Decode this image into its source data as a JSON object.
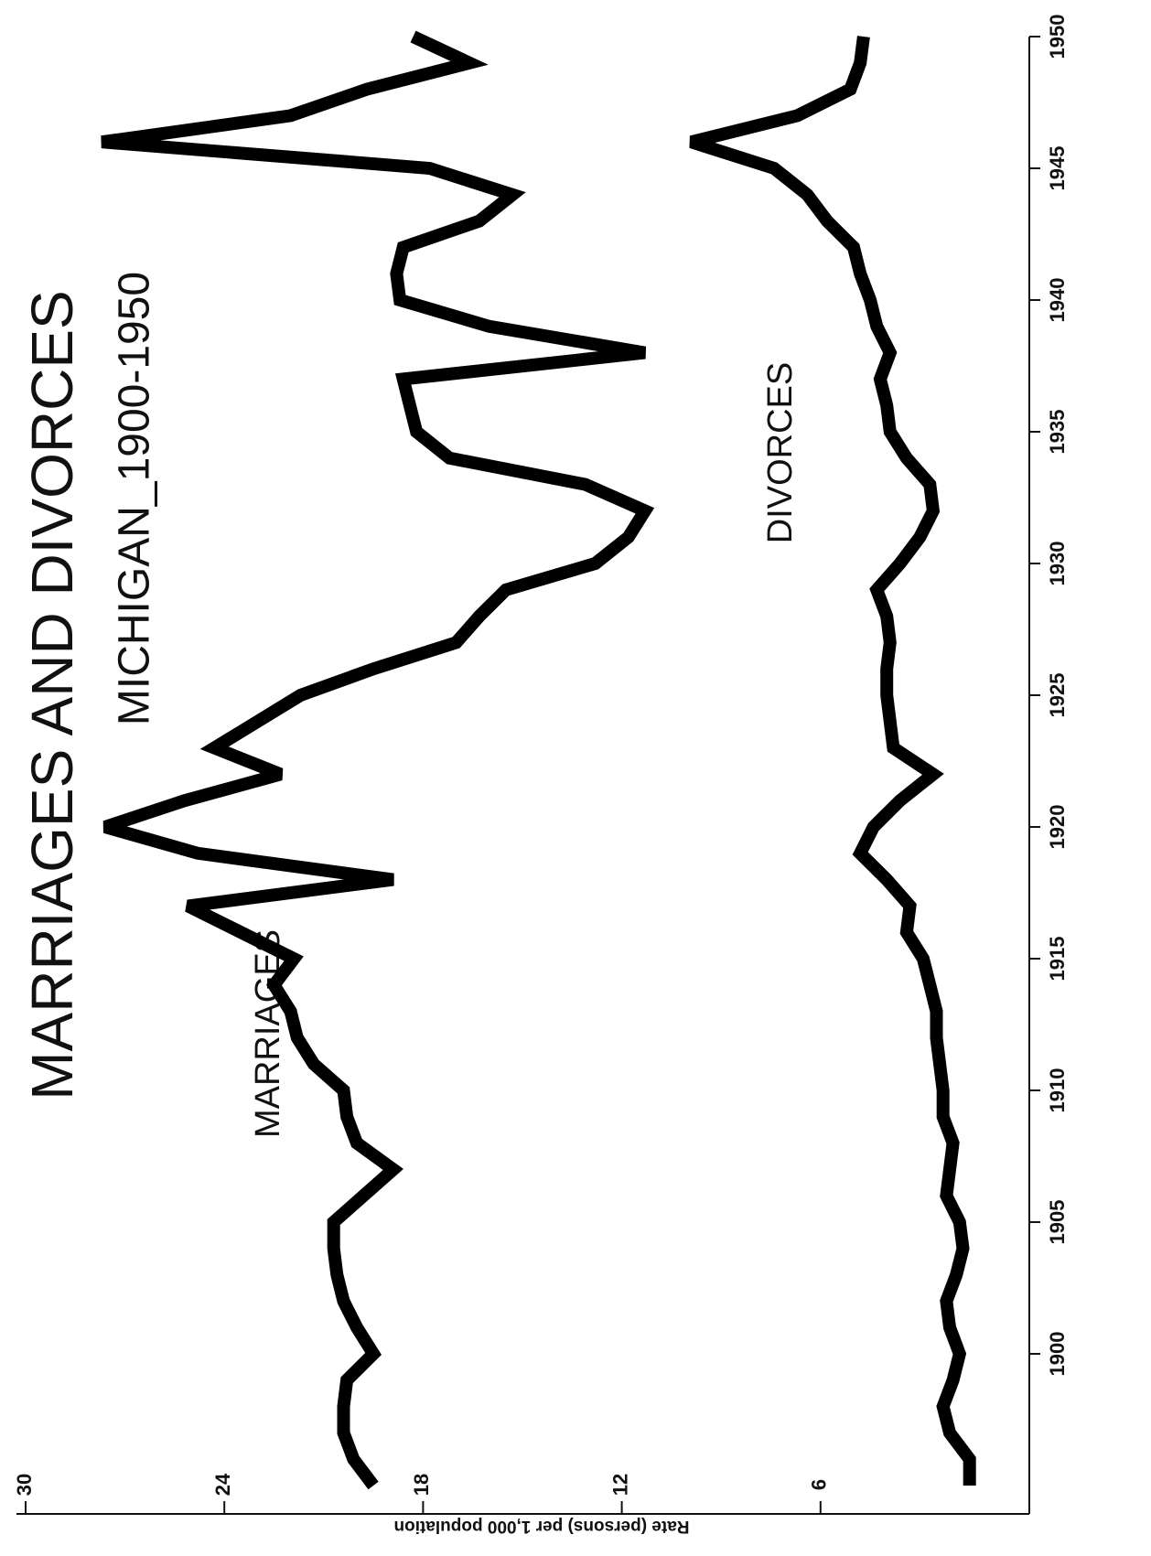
{
  "chart_data": {
    "type": "line",
    "title": "MARRIAGES AND DIVORCES",
    "subtitle": "MICHIGAN_1900-1950",
    "y_label": "Rate (persons) per 1,000 population",
    "x": [
      1895,
      1896,
      1897,
      1898,
      1899,
      1900,
      1901,
      1902,
      1903,
      1904,
      1905,
      1906,
      1907,
      1908,
      1909,
      1910,
      1911,
      1912,
      1913,
      1914,
      1915,
      1916,
      1917,
      1918,
      1919,
      1920,
      1921,
      1922,
      1923,
      1924,
      1925,
      1926,
      1927,
      1928,
      1929,
      1930,
      1931,
      1932,
      1933,
      1934,
      1935,
      1936,
      1937,
      1938,
      1939,
      1940,
      1941,
      1942,
      1943,
      1944,
      1945,
      1946,
      1947,
      1948,
      1949,
      1950
    ],
    "series": [
      {
        "name": "MARRIAGES",
        "color": "#000000",
        "values": [
          19.5,
          20.1,
          20.4,
          20.4,
          20.3,
          19.5,
          20.0,
          20.4,
          20.6,
          20.7,
          20.7,
          19.8,
          18.9,
          20.0,
          20.3,
          20.4,
          21.3,
          21.8,
          22.0,
          22.5,
          21.9,
          23.5,
          25.1,
          18.9,
          24.8,
          27.6,
          25.2,
          22.3,
          24.3,
          23.0,
          21.7,
          19.5,
          17.0,
          16.3,
          15.5,
          12.8,
          11.8,
          11.3,
          13.1,
          17.2,
          18.2,
          18.4,
          18.6,
          11.3,
          16.0,
          18.7,
          18.8,
          18.6,
          16.3,
          15.3,
          17.8,
          27.7,
          22.0,
          19.7,
          16.6,
          18.3
        ]
      },
      {
        "name": "DIVORCES",
        "color": "#000000",
        "values": [
          1.5,
          1.5,
          2.1,
          2.3,
          2.0,
          1.8,
          2.1,
          2.2,
          1.9,
          1.7,
          1.8,
          2.2,
          2.1,
          2.0,
          2.3,
          2.3,
          2.4,
          2.5,
          2.5,
          2.7,
          2.9,
          3.4,
          3.3,
          4.0,
          4.8,
          4.4,
          3.6,
          2.6,
          3.8,
          3.9,
          4.0,
          4.0,
          3.9,
          4.0,
          4.3,
          3.6,
          3.0,
          2.6,
          2.7,
          3.4,
          3.9,
          4.0,
          4.2,
          3.9,
          4.3,
          4.5,
          4.8,
          5.0,
          5.8,
          6.4,
          7.4,
          9.9,
          6.7,
          5.1,
          4.8,
          4.7
        ]
      }
    ],
    "xlim": [
      1895,
      1950
    ],
    "xticks": [
      1900,
      1905,
      1910,
      1915,
      1920,
      1925,
      1930,
      1935,
      1940,
      1945,
      1950
    ],
    "ylim": [
      0,
      30
    ],
    "yticks": [
      6,
      12,
      18,
      24,
      30
    ]
  }
}
